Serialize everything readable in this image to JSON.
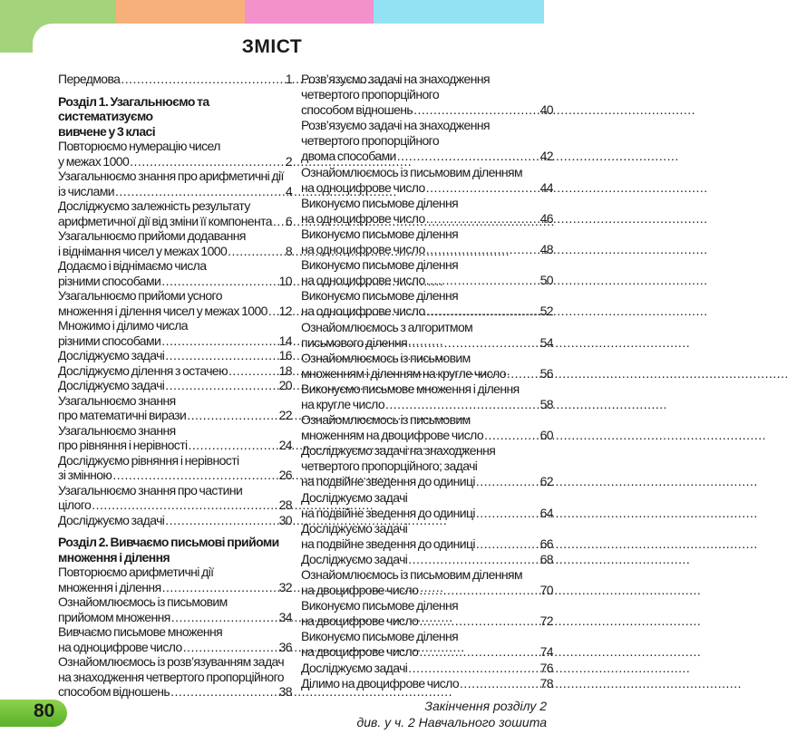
{
  "title": "ЗМІСТ",
  "page_number": "80",
  "colors": {
    "band": [
      "#a3d47c",
      "#f8b07a",
      "#f291cc",
      "#93e2f3"
    ],
    "page_pill": "#6cbf36"
  },
  "left": {
    "intro": {
      "lines": [
        "Передмова"
      ],
      "page": "1"
    },
    "section1": {
      "heading": [
        "Розділ 1. Узагальнюємо та систематизуємо",
        "вивчене у 3 класі"
      ],
      "entries": [
        {
          "lines": [
            "Повторюємо нумерацію чисел",
            "у межах 1000"
          ],
          "page": "2"
        },
        {
          "lines": [
            "Узагальнюємо знання про арифметичні дії",
            "із числами"
          ],
          "page": "4"
        },
        {
          "lines": [
            "Досліджуємо залежність результату",
            "арифметичної дії від зміни її компонента"
          ],
          "page": "6"
        },
        {
          "lines": [
            "Узагальнюємо прийоми додавання",
            "і віднімання чисел у межах 1000"
          ],
          "page": "8"
        },
        {
          "lines": [
            "Додаємо і віднімаємо числа",
            "різними способами"
          ],
          "page": "10"
        },
        {
          "lines": [
            "Узагальнюємо прийоми усного",
            "множення і ділення чисел у межах 1000"
          ],
          "page": "12"
        },
        {
          "lines": [
            "Множимо і ділимо числа",
            "різними способами"
          ],
          "page": "14"
        },
        {
          "lines": [
            "Досліджуємо задачі"
          ],
          "page": "16"
        },
        {
          "lines": [
            "Досліджуємо ділення з остачею"
          ],
          "page": "18"
        },
        {
          "lines": [
            "Досліджуємо задачі"
          ],
          "page": "20"
        },
        {
          "lines": [
            "Узагальнюємо знання",
            "про математичні вирази"
          ],
          "page": "22"
        },
        {
          "lines": [
            "Узагальнюємо знання",
            "про рівняння і нерівності"
          ],
          "page": "24"
        },
        {
          "lines": [
            "Досліджуємо рівняння і нерівності",
            "зі змінною"
          ],
          "page": "26"
        },
        {
          "lines": [
            "Узагальнюємо знання про частини",
            "цілого"
          ],
          "page": "28"
        },
        {
          "lines": [
            "Досліджуємо задачі"
          ],
          "page": "30"
        }
      ]
    },
    "section2": {
      "heading": [
        "Розділ 2. Вивчаємо письмові прийоми",
        "множення і ділення"
      ],
      "entries": [
        {
          "lines": [
            "Повторюємо арифметичні дії",
            "множення і ділення"
          ],
          "page": "32"
        },
        {
          "lines": [
            "Ознайомлюємось із письмовим",
            "прийомом множення"
          ],
          "page": "34"
        },
        {
          "lines": [
            "Вивчаємо письмове множення",
            "на одноцифрове число"
          ],
          "page": "36"
        },
        {
          "lines": [
            "Ознайомлюємось із розв’язуванням задач",
            "на знаходження четвертого пропорційного",
            "способом відношень"
          ],
          "page": "38"
        }
      ]
    }
  },
  "right": {
    "entries": [
      {
        "lines": [
          "Розв’язуємо задачі на знаходження",
          "четвертого пропорційного",
          "способом відношень"
        ],
        "page": "40"
      },
      {
        "lines": [
          "Розв’язуємо задачі на знаходження",
          "четвертого пропорційного",
          "двома способами"
        ],
        "page": "42"
      },
      {
        "lines": [
          "Ознайомлюємось із письмовим діленням",
          "на одноцифрове число"
        ],
        "page": "44"
      },
      {
        "lines": [
          "Виконуємо письмове ділення",
          "на одноцифрове число"
        ],
        "page": "46"
      },
      {
        "lines": [
          "Виконуємо письмове ділення",
          "на одноцифрове число"
        ],
        "page": "48"
      },
      {
        "lines": [
          "Виконуємо письмове ділення",
          "на одноцифрове число"
        ],
        "page": "50"
      },
      {
        "lines": [
          "Виконуємо письмове ділення",
          "на одноцифрове число"
        ],
        "page": "52"
      },
      {
        "lines": [
          "Ознайомлюємось з алгоритмом",
          "письмового ділення"
        ],
        "page": "54"
      },
      {
        "lines": [
          "Ознайомлюємось із письмовим",
          "множенням і діленням на кругле число"
        ],
        "page": "56"
      },
      {
        "lines": [
          "Виконуємо письмове множення і ділення",
          "на кругле число"
        ],
        "page": "58"
      },
      {
        "lines": [
          "Ознайомлюємось із письмовим",
          "множенням на двоцифрове число"
        ],
        "page": "60"
      },
      {
        "lines": [
          "Досліджуємо задачі на знаходження",
          "четвертого пропорційного; задачі",
          "на подвійне зведення до одиниці"
        ],
        "page": "62"
      },
      {
        "lines": [
          "Досліджуємо задачі",
          "на подвійне зведення до одиниці"
        ],
        "page": "64"
      },
      {
        "lines": [
          "Досліджуємо задачі",
          "на подвійне зведення до одиниці"
        ],
        "page": "66"
      },
      {
        "lines": [
          "Досліджуємо задачі"
        ],
        "page": "68"
      },
      {
        "lines": [
          "Ознайомлюємось із письмовим діленням",
          "на двоцифрове число"
        ],
        "page": "70"
      },
      {
        "lines": [
          "Виконуємо письмове ділення",
          "на двоцифрове число"
        ],
        "page": "72"
      },
      {
        "lines": [
          "Виконуємо письмове ділення",
          "на двоцифрове число"
        ],
        "page": "74"
      },
      {
        "lines": [
          "Досліджуємо задачі"
        ],
        "page": "76"
      },
      {
        "lines": [
          "Ділимо на двоцифрове число"
        ],
        "page": "78"
      }
    ],
    "note": [
      "Закінчення розділу 2",
      "див. у ч. 2 Навчального зошита"
    ]
  }
}
